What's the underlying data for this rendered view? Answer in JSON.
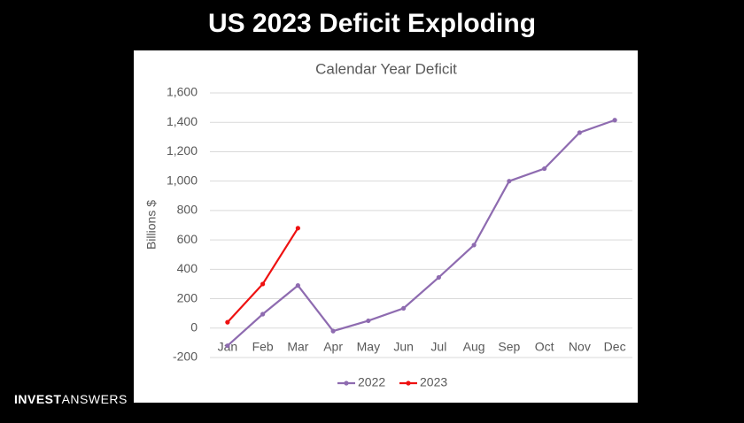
{
  "header": {
    "title": "US 2023 Deficit Exploding"
  },
  "logo": {
    "bold": "INVEST",
    "light": "ANSWERS"
  },
  "chart_data": {
    "type": "line",
    "title": "Calendar Year Deficit",
    "y_label": "Billions $",
    "categories": [
      "Jan",
      "Feb",
      "Mar",
      "Apr",
      "May",
      "Jun",
      "Jul",
      "Aug",
      "Sep",
      "Oct",
      "Nov",
      "Dec"
    ],
    "series": [
      {
        "name": "2022",
        "color": "#8e6bb0",
        "values": [
          -120,
          95,
          290,
          -20,
          50,
          135,
          345,
          565,
          1000,
          1085,
          1330,
          1415
        ]
      },
      {
        "name": "2023",
        "color": "#ee1111",
        "values": [
          40,
          300,
          680,
          null,
          null,
          null,
          null,
          null,
          null,
          null,
          null,
          null
        ]
      }
    ],
    "ylim": [
      -200,
      1600
    ],
    "yticks": [
      -200,
      0,
      200,
      400,
      600,
      800,
      {
        "value": 1000,
        "label": "1,000"
      },
      {
        "value": 1200,
        "label": "1,200"
      },
      {
        "value": 1400,
        "label": "1,400"
      },
      {
        "value": 1600,
        "label": "1,600"
      }
    ],
    "grid": true,
    "legend": "bottom"
  }
}
